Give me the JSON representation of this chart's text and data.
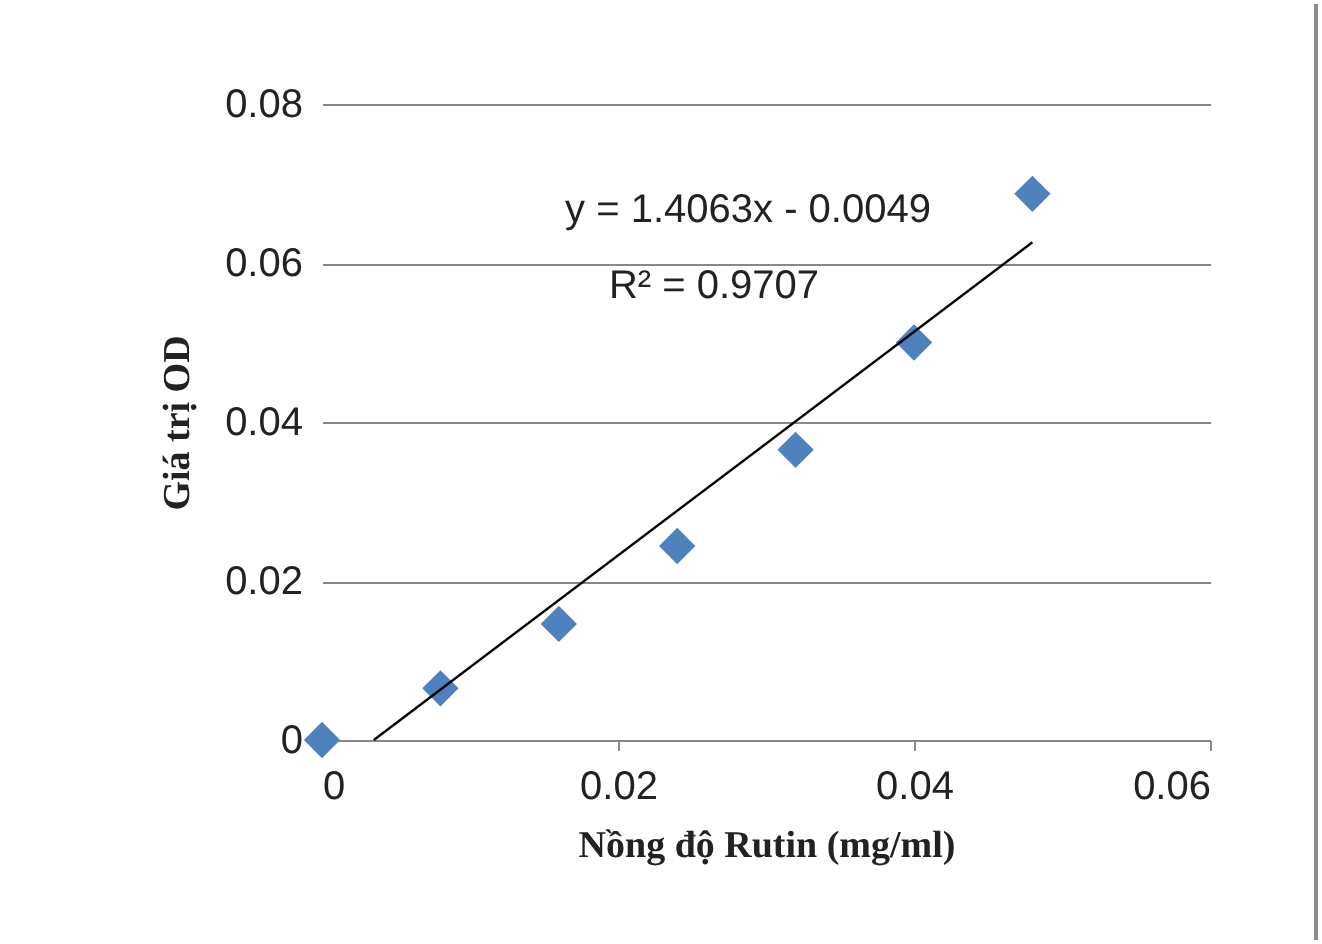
{
  "chart_data": {
    "type": "scatter",
    "xlabel": "Nồng độ Rutin (mg/ml)",
    "ylabel": "Giá trị OD",
    "x": [
      0,
      0.008,
      0.016,
      0.024,
      0.032,
      0.04,
      0.048
    ],
    "series": [
      {
        "color": "#4f81bd",
        "marker": "diamond",
        "values": [
          0,
          0.0065,
          0.0146,
          0.0244,
          0.0365,
          0.05,
          0.0687
        ]
      },
      {
        "type": "line",
        "color": "#000000",
        "x": [
          0.0035,
          0.048
        ],
        "values": [
          0,
          0.0626
        ]
      }
    ],
    "xlim": [
      0,
      0.06
    ],
    "xticks": [
      0,
      0.02,
      0.04,
      0.06
    ],
    "ylim": [
      0,
      0.08
    ],
    "yticks": [
      0,
      0.02,
      0.04,
      0.06,
      0.08
    ],
    "grid": "y",
    "annotations": [
      "y = 1.4063x - 0.0049",
      "R² = 0.9707"
    ]
  }
}
